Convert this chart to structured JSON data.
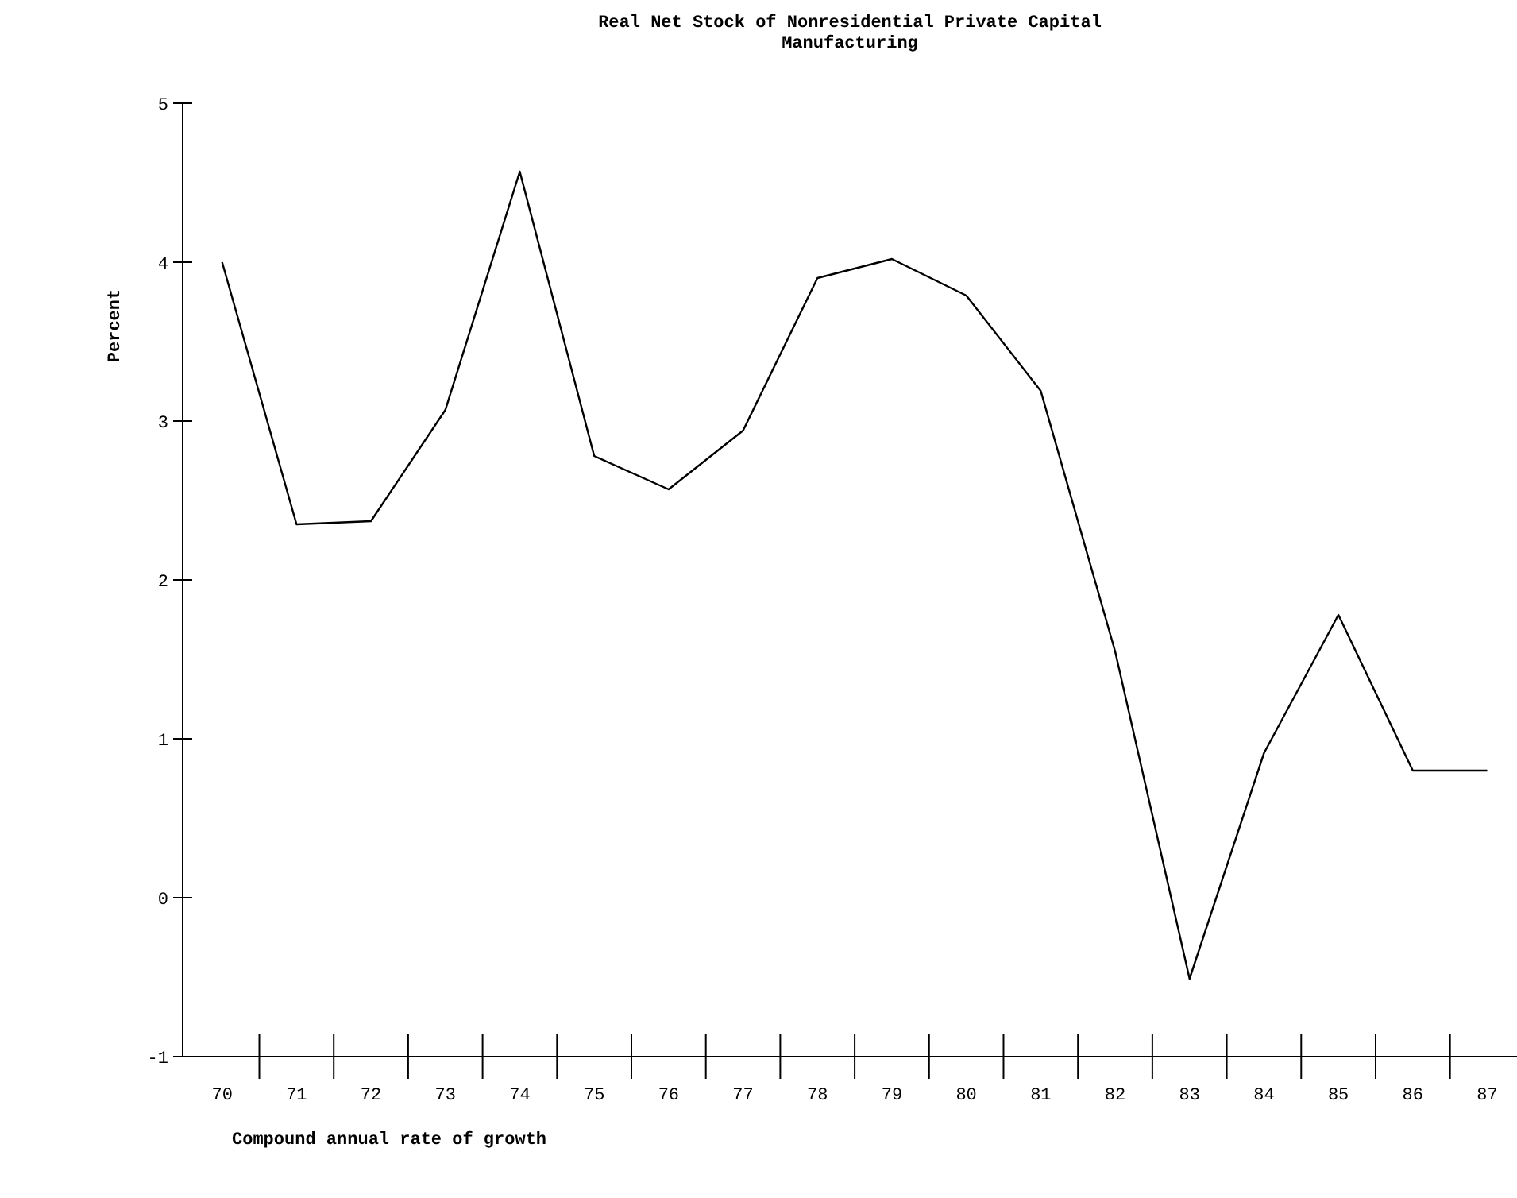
{
  "chart_data": {
    "type": "line",
    "title": "Real Net Stock of Nonresidential Private Capital",
    "subtitle": "Manufacturing",
    "ylabel": "Percent",
    "annotations": [
      "Compound annual rate of growth"
    ],
    "categories": [
      "70",
      "71",
      "72",
      "73",
      "74",
      "75",
      "76",
      "77",
      "78",
      "79",
      "80",
      "81",
      "82",
      "83",
      "84",
      "85",
      "86",
      "87"
    ],
    "values": [
      4.0,
      2.35,
      2.37,
      3.07,
      4.57,
      2.78,
      2.57,
      2.94,
      3.9,
      4.02,
      3.79,
      3.19,
      1.55,
      -0.51,
      0.91,
      1.78,
      0.8,
      0.8
    ],
    "color": "#000000",
    "ylim": [
      -1,
      5
    ],
    "yticks": [
      -1,
      0,
      1,
      2,
      3,
      4,
      5
    ],
    "grid": false,
    "line_style": "solid"
  }
}
